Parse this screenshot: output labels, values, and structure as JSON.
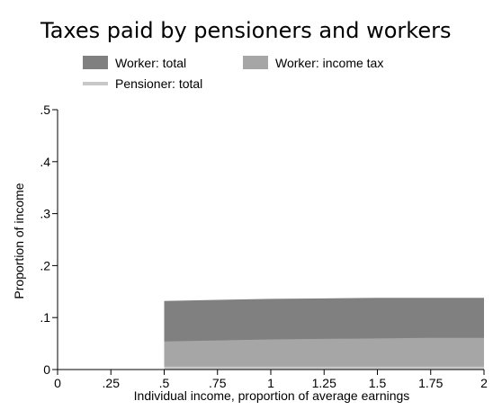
{
  "chart_data": {
    "type": "area",
    "title": "Taxes paid by pensioners and workers",
    "xlabel": "Individual income, proportion of average earnings",
    "ylabel": "Proportion of income",
    "xlim": [
      0,
      2
    ],
    "ylim": [
      0,
      0.5
    ],
    "x_ticks": [
      0,
      0.25,
      0.5,
      0.75,
      1,
      1.25,
      1.5,
      1.75,
      2
    ],
    "x_tick_labels": [
      "0",
      ".25",
      ".5",
      ".75",
      "1",
      "1.25",
      "1.5",
      "1.75",
      "2"
    ],
    "y_ticks": [
      0,
      0.1,
      0.2,
      0.3,
      0.4,
      0.5
    ],
    "y_tick_labels": [
      "0",
      ".1",
      ".2",
      ".3",
      ".4",
      ".5"
    ],
    "legend_placement": "top",
    "x": [
      0.5,
      0.75,
      1,
      1.25,
      1.5,
      1.75,
      2
    ],
    "series": [
      {
        "name": "Worker: total",
        "kind": "area",
        "color": "#808080",
        "values": [
          0.132,
          0.134,
          0.136,
          0.137,
          0.138,
          0.138,
          0.138
        ]
      },
      {
        "name": "Worker: income tax",
        "kind": "area",
        "color": "#a6a6a6",
        "values": [
          0.054,
          0.056,
          0.058,
          0.059,
          0.06,
          0.061,
          0.061
        ]
      },
      {
        "name": "Pensioner: total",
        "kind": "line",
        "color": "#c8c8c8",
        "values": [
          0.003,
          0.003,
          0.003,
          0.003,
          0.003,
          0.003,
          0.003
        ]
      }
    ]
  }
}
